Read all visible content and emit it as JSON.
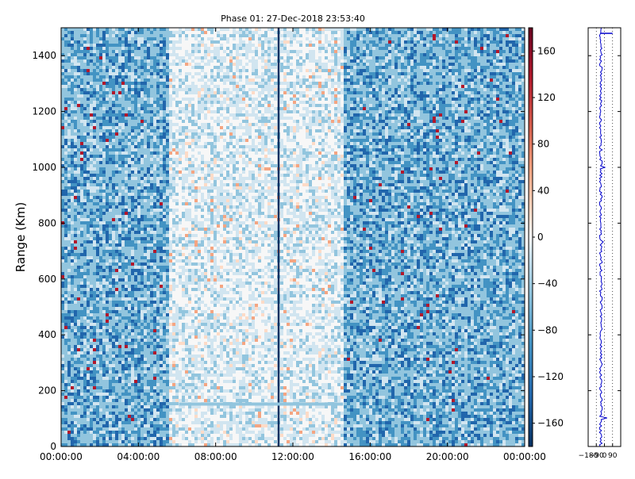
{
  "chart_data": {
    "type": "heatmap",
    "title": "Phase 01: 27-Dec-2018 23:53:40",
    "ylabel": "Range (Km)",
    "xlabel": "",
    "x_tick_labels": [
      "00:00:00",
      "04:00:00",
      "08:00:00",
      "12:00:00",
      "16:00:00",
      "20:00:00",
      "00:00:00"
    ],
    "x_range_hours": [
      0,
      24
    ],
    "y_ticks": [
      0,
      200,
      400,
      600,
      800,
      1000,
      1200,
      1400
    ],
    "y_range_km": [
      0,
      1500
    ],
    "colorbar": {
      "colormap": "RdBu_r",
      "range": [
        -180,
        180
      ],
      "ticks": [
        160,
        120,
        80,
        40,
        0,
        -40,
        -80,
        -120,
        -160
      ],
      "tick_labels": [
        "160",
        "120",
        "80",
        "40",
        "0",
        "−40",
        "−80",
        "−120",
        "−160"
      ]
    },
    "features": {
      "blue_band_hours": [
        [
          0,
          5.6
        ],
        [
          14.6,
          24
        ]
      ],
      "light_band_hours": [
        5.6,
        14.6
      ],
      "vertical_line_hour": 11.25,
      "horizontal_line_range_km": 152,
      "horizontal_line_hours": [
        6.1,
        14.6
      ]
    },
    "profile_panel": {
      "x_tick_labels": [
        "−180",
        "−90",
        "0",
        "90"
      ],
      "x_range": [
        -180,
        180
      ],
      "dotted_gridlines_x": [
        -90,
        0,
        90
      ],
      "trace_color": "#0000cc"
    }
  },
  "colors": {
    "deep_blue": "#2166ac",
    "mid_blue": "#4393c3",
    "light_blue": "#92c5de",
    "pale_blue": "#d1e5f0",
    "white": "#f7f7f7",
    "pale_red": "#fddbc7",
    "light_red": "#f4a582",
    "mid_red": "#d6604d",
    "deep_red": "#b2182b"
  }
}
